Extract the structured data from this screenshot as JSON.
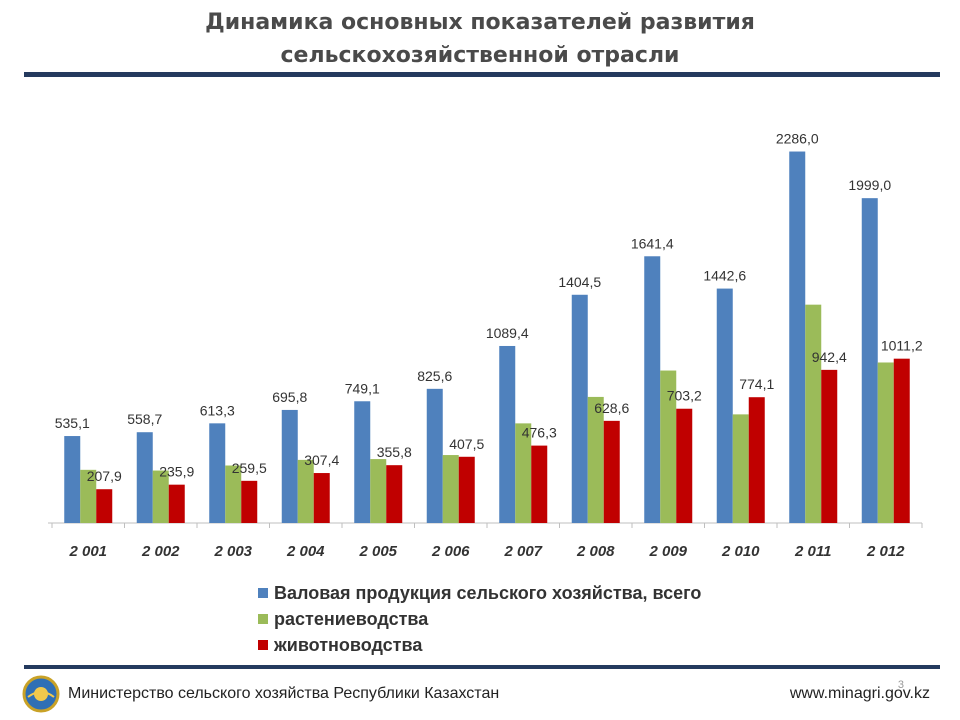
{
  "slide": {
    "title": "Динамика основных показателей развития сельскохозяйственной отрасли",
    "footer_left": "Министерство сельского хозяйства Республики Казахстан",
    "footer_right": "www.minagri.gov.kz",
    "page_number": "3",
    "emblem_icon": "kazakhstan-emblem-icon"
  },
  "chart_data": {
    "type": "bar",
    "categories": [
      "2 001",
      "2 002",
      "2 003",
      "2 004",
      "2 005",
      "2 006",
      "2 007",
      "2 008",
      "2 009",
      "2 010",
      "2 011",
      "2 012"
    ],
    "series": [
      {
        "name": "Валовая продукция сельского хозяйства, всего",
        "color": "#4f81bd",
        "values": [
          535.1,
          558.7,
          613.3,
          695.8,
          749.1,
          825.6,
          1089.4,
          1404.5,
          1641.4,
          1442.6,
          2286.0,
          1999.0
        ],
        "labels": [
          "535,1",
          "558,7",
          "613,3",
          "695,8",
          "749,1",
          "825,6",
          "1089,4",
          "1404,5",
          "1641,4",
          "1442,6",
          "2286,0",
          "1999,0"
        ]
      },
      {
        "name": "растениеводства",
        "color": "#9bbb59",
        "values": [
          327.2,
          322.8,
          353.8,
          388.4,
          393.3,
          418.1,
          613.1,
          775.9,
          938.2,
          668.5,
          1343.6,
          987.8
        ]
      },
      {
        "name": "животноводства",
        "color": "#c00000",
        "values": [
          207.9,
          235.9,
          259.5,
          307.4,
          355.8,
          407.5,
          476.3,
          628.6,
          703.2,
          774.1,
          942.4,
          1011.2
        ],
        "labels": [
          "207,9",
          "235,9",
          "259,5",
          "307,4",
          "355,8",
          "407,5",
          "476,3",
          "628,6",
          "703,2",
          "774,1",
          "942,4",
          "1011,2"
        ]
      }
    ],
    "ylim": [
      0,
      2400
    ],
    "grid": false,
    "legend_position": "bottom"
  }
}
